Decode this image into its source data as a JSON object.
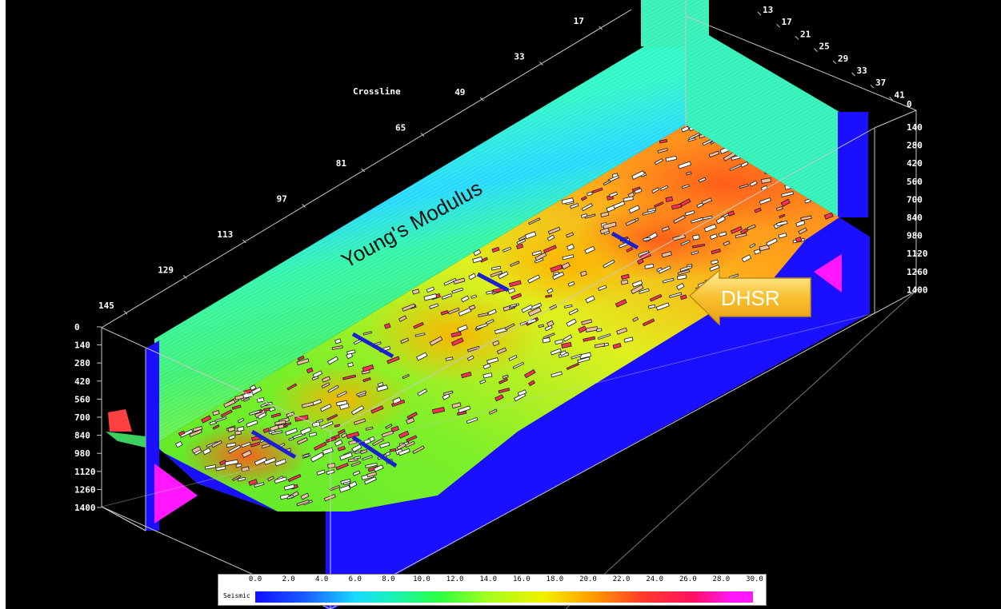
{
  "viewer": {
    "crossline_title": "Crossline",
    "volume_title": "Young's Modulus",
    "callout_label": "DHSR"
  },
  "crossline_ticks": [
    "145",
    "129",
    "113",
    "97",
    "81",
    "65",
    "49",
    "33",
    "17"
  ],
  "inline_ticks": [
    "13",
    "17",
    "21",
    "25",
    "29",
    "33",
    "37",
    "41"
  ],
  "depth_ticks_left": [
    "0",
    "140",
    "280",
    "420",
    "560",
    "700",
    "840",
    "980",
    "1120",
    "1260",
    "1400"
  ],
  "depth_ticks_right": [
    "140",
    "280",
    "420",
    "560",
    "700",
    "840",
    "980",
    "1120",
    "1260",
    "1400"
  ],
  "colorbar": {
    "label": "Seismic",
    "ticks": [
      "0.0",
      "2.0",
      "4.0",
      "6.0",
      "8.0",
      "10.0",
      "12.0",
      "14.0",
      "16.0",
      "18.0",
      "20.0",
      "22.0",
      "24.0",
      "26.0",
      "28.0",
      "30.0"
    ],
    "colors": [
      "#1010ff",
      "#1ad8ff",
      "#2cff40",
      "#f2f000",
      "#ff9a00",
      "#ff3a2a",
      "#ff18ff"
    ]
  }
}
